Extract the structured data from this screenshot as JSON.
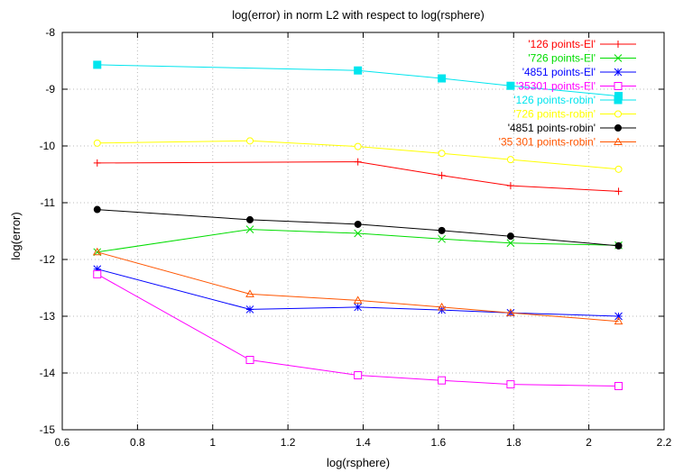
{
  "chart_data": {
    "type": "line",
    "title": "log(error) in norm L2 with respect to log(rsphere)",
    "xlabel": "log(rsphere)",
    "ylabel": "log(error)",
    "xlim": [
      0.6,
      2.2
    ],
    "ylim": [
      -15,
      -8
    ],
    "xticks": [
      0.6,
      0.8,
      1,
      1.2,
      1.4,
      1.6,
      1.8,
      2,
      2.2
    ],
    "xtick_labels": [
      "0.6",
      "0.8",
      "1",
      "1.2",
      "1.4",
      "1.6",
      "1.8",
      "2",
      "2.2"
    ],
    "yticks": [
      -15,
      -14,
      -13,
      -12,
      -11,
      -10,
      -9,
      -8
    ],
    "ytick_labels": [
      "-15",
      "-14",
      "-13",
      "-12",
      "-11",
      "-10",
      "-9",
      "-8"
    ],
    "grid": true,
    "legend_position": "top-right",
    "series": [
      {
        "name": "'126 points-El'",
        "color": "#ff0000",
        "marker": "plus",
        "x": [
          0.693,
          1.386,
          1.609,
          1.792,
          2.079
        ],
        "y": [
          -10.3,
          -10.28,
          -10.52,
          -10.7,
          -10.8
        ]
      },
      {
        "name": "'726 points-El'",
        "color": "#00dd00",
        "marker": "cross",
        "x": [
          0.693,
          1.099,
          1.386,
          1.609,
          1.792,
          2.079
        ],
        "y": [
          -11.87,
          -11.47,
          -11.54,
          -11.64,
          -11.71,
          -11.75
        ]
      },
      {
        "name": "'4851 points-El'",
        "color": "#0000ff",
        "marker": "star",
        "x": [
          0.693,
          1.099,
          1.386,
          1.609,
          1.792,
          2.079
        ],
        "y": [
          -12.17,
          -12.88,
          -12.84,
          -12.89,
          -12.94,
          -13.0
        ]
      },
      {
        "name": "'35301 points-El'",
        "color": "#ff00ff",
        "marker": "square",
        "x": [
          0.693,
          1.099,
          1.386,
          1.609,
          1.792,
          2.079
        ],
        "y": [
          -12.26,
          -13.77,
          -14.04,
          -14.13,
          -14.2,
          -14.23
        ]
      },
      {
        "name": "'126 points-robin'",
        "color": "#00e5ee",
        "marker": "filled-square",
        "x": [
          0.693,
          1.386,
          1.609,
          1.792,
          2.079
        ],
        "y": [
          -8.57,
          -8.67,
          -8.81,
          -8.94,
          -9.12
        ]
      },
      {
        "name": "'726 points-robin'",
        "color": "#ffff00",
        "marker": "circle",
        "x": [
          0.693,
          1.099,
          1.386,
          1.609,
          1.792,
          2.079
        ],
        "y": [
          -9.95,
          -9.91,
          -10.01,
          -10.13,
          -10.24,
          -10.41
        ]
      },
      {
        "name": "'4851 points-robin'",
        "color": "#000000",
        "marker": "filled-circle",
        "x": [
          0.693,
          1.099,
          1.386,
          1.609,
          1.792,
          2.079
        ],
        "y": [
          -11.12,
          -11.3,
          -11.38,
          -11.49,
          -11.59,
          -11.76
        ]
      },
      {
        "name": "'35 301 points-robin'",
        "color": "#ff5500",
        "marker": "triangle",
        "x": [
          0.693,
          1.099,
          1.386,
          1.609,
          1.792,
          2.079
        ],
        "y": [
          -11.87,
          -12.61,
          -12.72,
          -12.84,
          -12.94,
          -13.09
        ]
      }
    ]
  }
}
